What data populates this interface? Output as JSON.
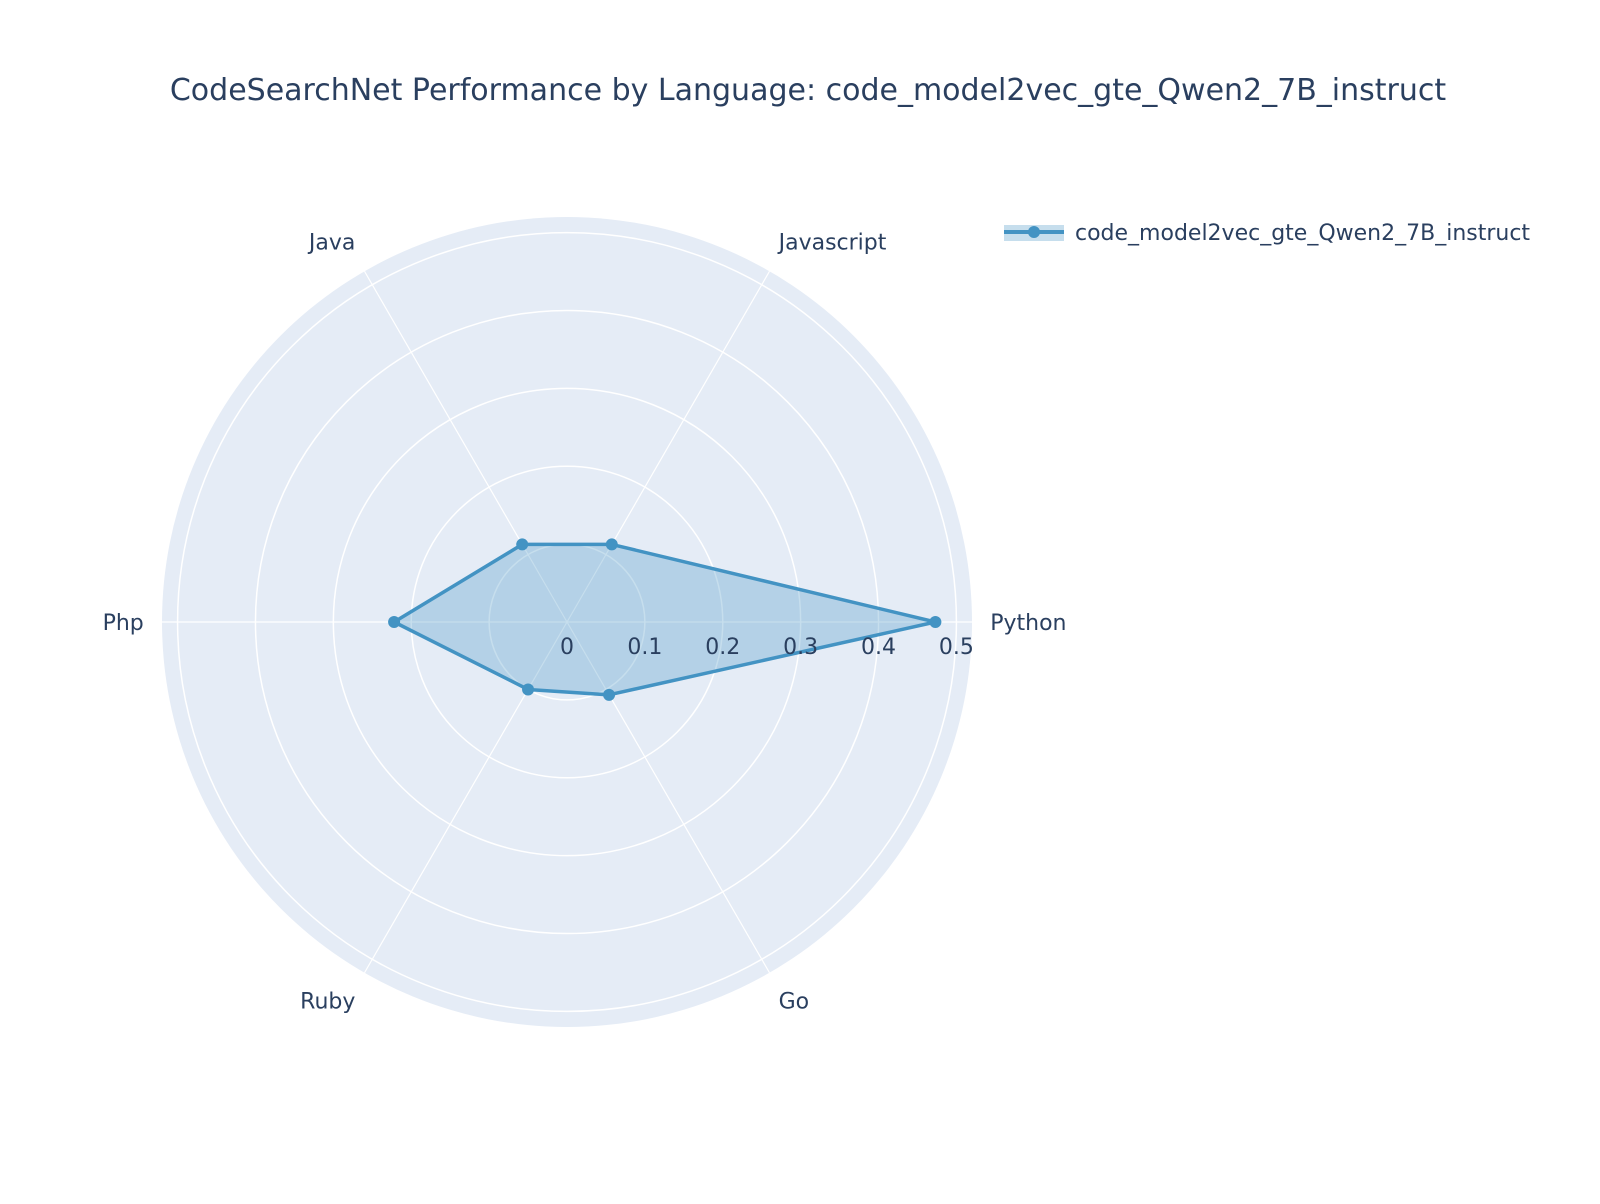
{
  "chart_data": {
    "type": "radar",
    "title": "CodeSearchNet Performance by Language: code_model2vec_gte_Qwen2_7B_instruct",
    "categories": [
      "Python",
      "Javascript",
      "Java",
      "Php",
      "Ruby",
      "Go"
    ],
    "series": [
      {
        "name": "code_model2vec_gte_Qwen2_7B_instruct",
        "values": [
          0.473,
          0.115,
          0.115,
          0.222,
          0.1,
          0.108
        ]
      }
    ],
    "radial_axis": {
      "range": [
        0,
        0.52
      ],
      "ticks": [
        0,
        0.1,
        0.2,
        0.3,
        0.4,
        0.5
      ],
      "tick_labels": [
        "0",
        "0.1",
        "0.2",
        "0.3",
        "0.4",
        "0.5"
      ]
    },
    "grid": true,
    "legend_position": "top-right",
    "colors": {
      "series_line": "#4393c3",
      "series_fill": "rgba(67,147,195,0.3)",
      "polar_bg": "#e5ecf6",
      "grid": "#ffffff",
      "text": "#2a3f5f"
    }
  }
}
